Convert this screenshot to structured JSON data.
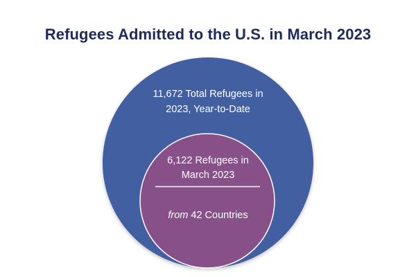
{
  "title": "Refugees Admitted to the U.S. in March 2023",
  "outer_circle": {
    "line1": "11,672 Total Refugees in",
    "line2": "2023, Year-to-Date",
    "color": "#435ea2"
  },
  "inner_circle": {
    "line1": "6,122 Refugees in",
    "line2": "March 2023",
    "from_word": "from",
    "countries_text": " 42 Countries",
    "color": "#875088"
  }
}
